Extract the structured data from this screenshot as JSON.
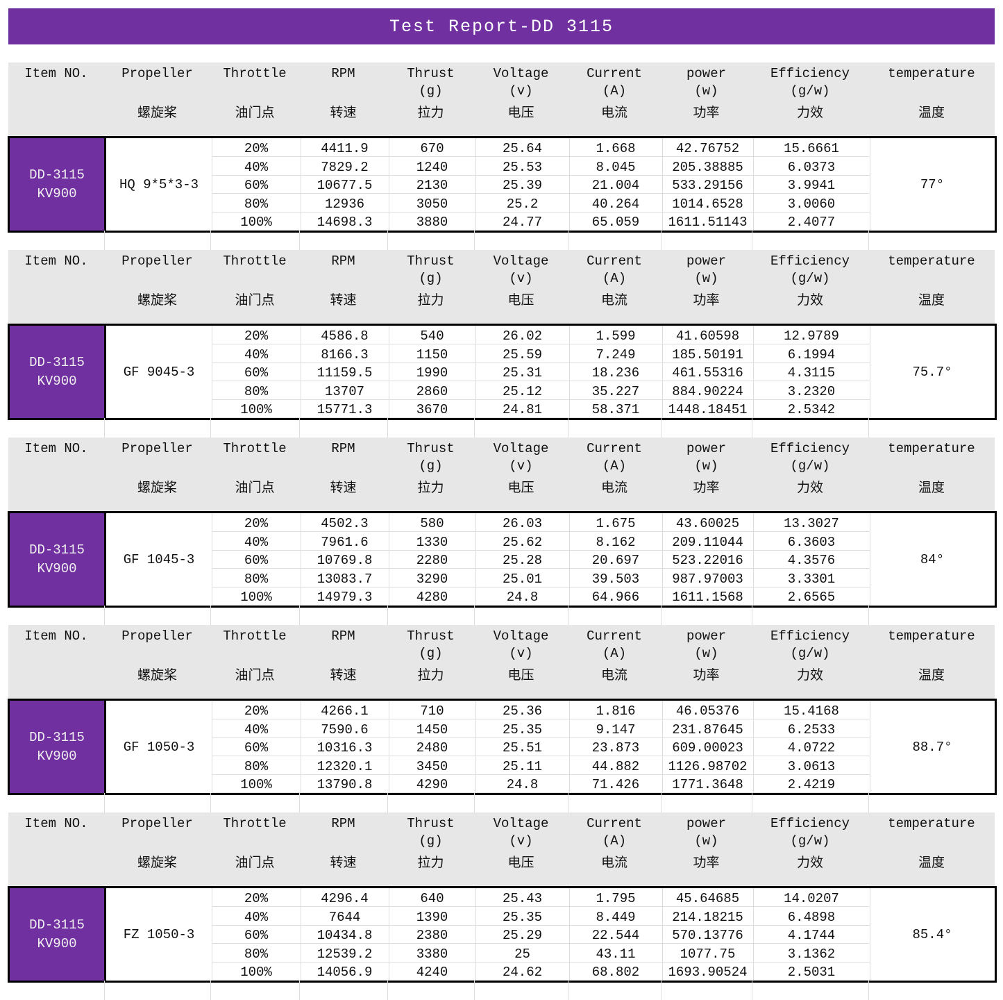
{
  "title": "Test Report-DD 3115",
  "header": {
    "item": [
      "Item NO.",
      "",
      ""
    ],
    "propeller": [
      "Propeller",
      "",
      "螺旋桨"
    ],
    "throttle": [
      "Throttle",
      "",
      "油门点"
    ],
    "rpm": [
      "RPM",
      "",
      "转速"
    ],
    "thrust": [
      "Thrust",
      "(g)",
      "拉力"
    ],
    "voltage": [
      "Voltage",
      "(v)",
      "电压"
    ],
    "current": [
      "Current",
      "(A)",
      "电流"
    ],
    "power": [
      "power",
      "(w)",
      "功率"
    ],
    "efficiency": [
      "Efficiency",
      "(g/w)",
      "力效"
    ],
    "temperature": [
      "temperature",
      "",
      "温度"
    ]
  },
  "tests": [
    {
      "item": [
        "DD-3115",
        "KV900"
      ],
      "propeller": "HQ 9*5*3-3",
      "temperature": "77°",
      "rows": [
        [
          "20%",
          "4411.9",
          "670",
          "25.64",
          "1.668",
          "42.76752",
          "15.6661"
        ],
        [
          "40%",
          "7829.2",
          "1240",
          "25.53",
          "8.045",
          "205.38885",
          "6.0373"
        ],
        [
          "60%",
          "10677.5",
          "2130",
          "25.39",
          "21.004",
          "533.29156",
          "3.9941"
        ],
        [
          "80%",
          "12936",
          "3050",
          "25.2",
          "40.264",
          "1014.6528",
          "3.0060"
        ],
        [
          "100%",
          "14698.3",
          "3880",
          "24.77",
          "65.059",
          "1611.51143",
          "2.4077"
        ]
      ]
    },
    {
      "item": [
        "DD-3115",
        "KV900"
      ],
      "propeller": "GF 9045-3",
      "temperature": "75.7°",
      "rows": [
        [
          "20%",
          "4586.8",
          "540",
          "26.02",
          "1.599",
          "41.60598",
          "12.9789"
        ],
        [
          "40%",
          "8166.3",
          "1150",
          "25.59",
          "7.249",
          "185.50191",
          "6.1994"
        ],
        [
          "60%",
          "11159.5",
          "1990",
          "25.31",
          "18.236",
          "461.55316",
          "4.3115"
        ],
        [
          "80%",
          "13707",
          "2860",
          "25.12",
          "35.227",
          "884.90224",
          "3.2320"
        ],
        [
          "100%",
          "15771.3",
          "3670",
          "24.81",
          "58.371",
          "1448.18451",
          "2.5342"
        ]
      ]
    },
    {
      "item": [
        "DD-3115",
        "KV900"
      ],
      "propeller": "GF 1045-3",
      "temperature": "84°",
      "rows": [
        [
          "20%",
          "4502.3",
          "580",
          "26.03",
          "1.675",
          "43.60025",
          "13.3027"
        ],
        [
          "40%",
          "7961.6",
          "1330",
          "25.62",
          "8.162",
          "209.11044",
          "6.3603"
        ],
        [
          "60%",
          "10769.8",
          "2280",
          "25.28",
          "20.697",
          "523.22016",
          "4.3576"
        ],
        [
          "80%",
          "13083.7",
          "3290",
          "25.01",
          "39.503",
          "987.97003",
          "3.3301"
        ],
        [
          "100%",
          "14979.3",
          "4280",
          "24.8",
          "64.966",
          "1611.1568",
          "2.6565"
        ]
      ]
    },
    {
      "item": [
        "DD-3115",
        "KV900"
      ],
      "propeller": "GF 1050-3",
      "temperature": "88.7°",
      "rows": [
        [
          "20%",
          "4266.1",
          "710",
          "25.36",
          "1.816",
          "46.05376",
          "15.4168"
        ],
        [
          "40%",
          "7590.6",
          "1450",
          "25.35",
          "9.147",
          "231.87645",
          "6.2533"
        ],
        [
          "60%",
          "10316.3",
          "2480",
          "25.51",
          "23.873",
          "609.00023",
          "4.0722"
        ],
        [
          "80%",
          "12320.1",
          "3450",
          "25.11",
          "44.882",
          "1126.98702",
          "3.0613"
        ],
        [
          "100%",
          "13790.8",
          "4290",
          "24.8",
          "71.426",
          "1771.3648",
          "2.4219"
        ]
      ]
    },
    {
      "item": [
        "DD-3115",
        "KV900"
      ],
      "propeller": "FZ 1050-3",
      "temperature": "85.4°",
      "rows": [
        [
          "20%",
          "4296.4",
          "640",
          "25.43",
          "1.795",
          "45.64685",
          "14.0207"
        ],
        [
          "40%",
          "7644",
          "1390",
          "25.35",
          "8.449",
          "214.18215",
          "6.4898"
        ],
        [
          "60%",
          "10434.8",
          "2380",
          "25.29",
          "22.544",
          "570.13776",
          "4.1744"
        ],
        [
          "80%",
          "12539.2",
          "3380",
          "25",
          "43.11",
          "1077.75",
          "3.1362"
        ],
        [
          "100%",
          "14056.9",
          "4240",
          "24.62",
          "68.802",
          "1693.90524",
          "2.5031"
        ]
      ]
    }
  ]
}
